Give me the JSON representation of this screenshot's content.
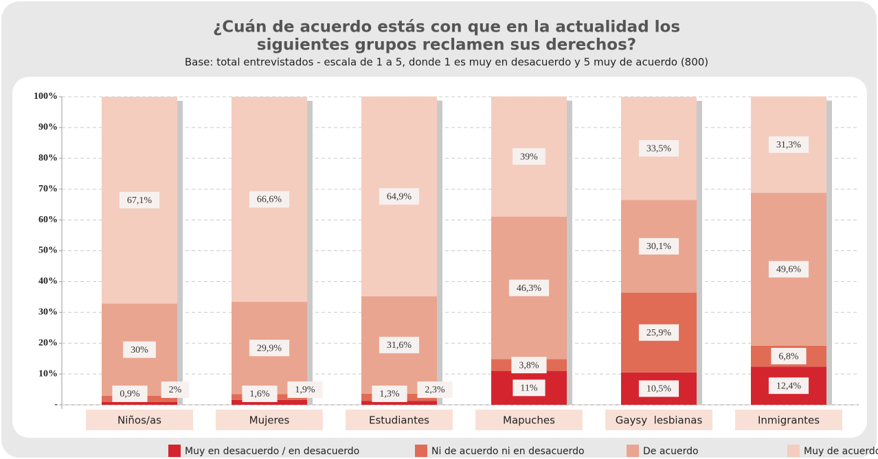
{
  "chart_data": {
    "type": "stacked_bar",
    "title": [
      "¿Cuán de acuerdo estás con que en la actualidad los",
      "siguientes grupos reclamen sus derechos?"
    ],
    "subtitle": "Base: total entrevistados - escala de 1 a 5, donde 1 es muy en desacuerdo y 5 muy de acuerdo (800)",
    "categories": [
      "Niños/as",
      "Mujeres",
      "Estudiantes",
      "Mapuches",
      "Gaysy  lesbianas",
      "Inmigrantes"
    ],
    "series": [
      {
        "name": "Muy en desacuerdo / en desacuerdo",
        "color": "#d4252f",
        "values": [
          0.9,
          1.6,
          1.3,
          11,
          10.5,
          12.4
        ],
        "value_labels": [
          "0,9%",
          "1,6%",
          "1,3%",
          "11%",
          "10,5%",
          "12,4%"
        ]
      },
      {
        "name": "Ni de acuerdo ni en desacuerdo",
        "color": "#e06c56",
        "values": [
          2,
          1.9,
          2.3,
          3.8,
          25.9,
          6.8
        ],
        "value_labels": [
          "2%",
          "1,9%",
          "2,3%",
          "3,8%",
          "25,9%",
          "6,8%"
        ]
      },
      {
        "name": "De acuerdo",
        "color": "#e9a590",
        "values": [
          30,
          29.9,
          31.6,
          46.3,
          30.1,
          49.6
        ],
        "value_labels": [
          "30%",
          "29,9%",
          "31,6%",
          "46,3%",
          "30,1%",
          "49,6%"
        ]
      },
      {
        "name": "Muy de acuerdo",
        "color": "#f4cdbf",
        "values": [
          67.1,
          66.6,
          64.9,
          39,
          33.5,
          31.3
        ],
        "value_labels": [
          "67,1%",
          "66,6%",
          "64,9%",
          "39%",
          "33,5%",
          "31,3%"
        ]
      }
    ],
    "ylim": [
      0,
      100
    ],
    "yticks": [
      {
        "value": 0,
        "label": "-"
      },
      {
        "value": 10,
        "label": "10%"
      },
      {
        "value": 20,
        "label": "20%"
      },
      {
        "value": 30,
        "label": "30%"
      },
      {
        "value": 40,
        "label": "40%"
      },
      {
        "value": 50,
        "label": "50%"
      },
      {
        "value": 60,
        "label": "60%"
      },
      {
        "value": 70,
        "label": "70%"
      },
      {
        "value": 80,
        "label": "80%"
      },
      {
        "value": 90,
        "label": "90%"
      },
      {
        "value": 100,
        "label": "100%"
      }
    ],
    "grid": true
  }
}
